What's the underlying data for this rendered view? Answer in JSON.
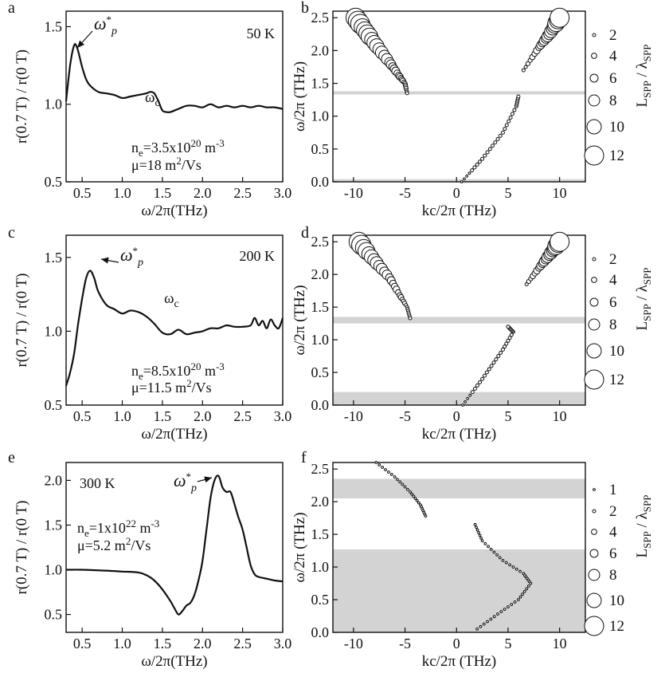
{
  "chart_data": [
    {
      "id": "a",
      "type": "line",
      "panel_label": "a",
      "temperature": "50 K",
      "xlabel": "ω/2π(THz)",
      "ylabel": "r(0.7 T) / r(0 T)",
      "xlim": [
        0.3,
        3.0
      ],
      "ylim": [
        0.5,
        1.6
      ],
      "xticks": [
        "0.5",
        "1.0",
        "1.5",
        "2.0",
        "2.5",
        "3.0"
      ],
      "yticks": [
        "0.5",
        "1.0",
        "1.5"
      ],
      "annotation_peak": "ω*p",
      "annotation_cyclotron": "ωc",
      "params": [
        "ne=3.5x10^20 m^-3",
        "μ=18 m²/Vs"
      ],
      "x": [
        0.3,
        0.35,
        0.4,
        0.44,
        0.5,
        0.55,
        0.6,
        0.7,
        0.8,
        0.9,
        1.0,
        1.1,
        1.2,
        1.3,
        1.35,
        1.4,
        1.45,
        1.5,
        1.55,
        1.6,
        1.7,
        1.8,
        1.9,
        2.0,
        2.1,
        2.2,
        2.3,
        2.4,
        2.5,
        2.6,
        2.7,
        2.8,
        2.9,
        3.0
      ],
      "y": [
        1.02,
        1.25,
        1.38,
        1.36,
        1.24,
        1.16,
        1.12,
        1.08,
        1.07,
        1.06,
        1.04,
        1.05,
        1.06,
        1.07,
        1.08,
        1.07,
        1.02,
        0.96,
        0.95,
        0.95,
        0.97,
        0.99,
        0.99,
        0.98,
        1.0,
        0.98,
        0.99,
        0.98,
        0.99,
        0.98,
        0.99,
        0.98,
        0.98,
        0.97
      ]
    },
    {
      "id": "b",
      "type": "scatter",
      "panel_label": "b",
      "xlabel": "kc/2π (THz)",
      "ylabel": "ω/2π (THz)",
      "xlim": [
        -12,
        12.5
      ],
      "ylim": [
        0,
        2.6
      ],
      "xticks": [
        "-10",
        "-5",
        "0",
        "5",
        "10"
      ],
      "yticks": [
        "0.0",
        "0.5",
        "1.0",
        "1.5",
        "2.0",
        "2.5"
      ],
      "bands": [
        [
          1.33,
          1.38
        ],
        [
          0.0,
          0.04
        ]
      ],
      "branches": [
        {
          "x": [
            -9.8,
            -8.0,
            -6.5,
            -5.6,
            -5.0,
            -4.8
          ],
          "y": [
            2.5,
            2.12,
            1.82,
            1.62,
            1.5,
            1.35
          ],
          "size": [
            12,
            10,
            7,
            5,
            3,
            2
          ]
        },
        {
          "x": [
            0.5,
            2.5,
            4.5,
            5.8,
            6.0
          ],
          "y": [
            0.0,
            0.35,
            0.75,
            1.15,
            1.3
          ],
          "size": [
            1,
            2,
            2,
            2,
            2
          ]
        },
        {
          "x": [
            6.5,
            8.0,
            9.0,
            10.0
          ],
          "y": [
            1.7,
            2.05,
            2.25,
            2.5
          ],
          "size": [
            2,
            5,
            8,
            12
          ]
        }
      ],
      "legend_title": "LSPP / λSPP",
      "legend": [
        "2",
        "4",
        "6",
        "8",
        "10",
        "12"
      ]
    },
    {
      "id": "c",
      "type": "line",
      "panel_label": "c",
      "temperature": "200 K",
      "xlabel": "ω/2π(THz)",
      "ylabel": "r(0.7 T) / r(0 T)",
      "xlim": [
        0.3,
        3.0
      ],
      "ylim": [
        0.5,
        1.65
      ],
      "xticks": [
        "0.5",
        "1.0",
        "1.5",
        "2.0",
        "2.5",
        "3.0"
      ],
      "yticks": [
        "0.5",
        "1.0",
        "1.5"
      ],
      "annotation_peak": "ω*p",
      "annotation_cyclotron": "ωc",
      "params": [
        "ne=8.5x10^20 m^-3",
        "μ=11.5 m²/Vs"
      ],
      "x": [
        0.3,
        0.35,
        0.4,
        0.45,
        0.5,
        0.55,
        0.6,
        0.65,
        0.7,
        0.8,
        0.9,
        1.0,
        1.1,
        1.2,
        1.3,
        1.4,
        1.5,
        1.6,
        1.7,
        1.8,
        1.9,
        2.0,
        2.1,
        2.2,
        2.3,
        2.4,
        2.5,
        2.6,
        2.65,
        2.7,
        2.75,
        2.8,
        2.85,
        2.9,
        2.95,
        3.0
      ],
      "y": [
        0.63,
        0.72,
        0.85,
        1.05,
        1.22,
        1.36,
        1.41,
        1.36,
        1.27,
        1.18,
        1.15,
        1.12,
        1.14,
        1.13,
        1.1,
        1.05,
        0.99,
        0.98,
        1.01,
        0.98,
        0.99,
        1.0,
        1.02,
        1.02,
        1.04,
        1.03,
        1.03,
        1.04,
        1.09,
        1.04,
        1.07,
        1.02,
        1.08,
        1.04,
        1.02,
        1.09
      ]
    },
    {
      "id": "d",
      "type": "scatter",
      "panel_label": "d",
      "xlabel": "kc/2π (THz)",
      "ylabel": "ω/2π (THz)",
      "xlim": [
        -12,
        12.5
      ],
      "ylim": [
        0,
        2.6
      ],
      "xticks": [
        "-10",
        "-5",
        "0",
        "5",
        "10"
      ],
      "yticks": [
        "0.0",
        "0.5",
        "1.0",
        "1.5",
        "2.0",
        "2.5"
      ],
      "bands": [
        [
          1.25,
          1.35
        ],
        [
          0.0,
          0.2
        ]
      ],
      "branches": [
        {
          "x": [
            -9.5,
            -8.0,
            -6.5,
            -5.5,
            -4.8,
            -4.5
          ],
          "y": [
            2.5,
            2.22,
            1.95,
            1.68,
            1.5,
            1.33
          ],
          "size": [
            12,
            9,
            6,
            4,
            2,
            2
          ]
        },
        {
          "x": [
            0.6,
            2.5,
            4.5,
            5.5,
            5.0
          ],
          "y": [
            0.0,
            0.4,
            0.85,
            1.12,
            1.2
          ],
          "size": [
            1,
            2,
            2,
            2,
            2
          ]
        },
        {
          "x": [
            6.8,
            8.0,
            9.0,
            10.0
          ],
          "y": [
            1.85,
            2.1,
            2.3,
            2.5
          ],
          "size": [
            2,
            5,
            8,
            12
          ]
        }
      ],
      "legend_title": "LSPP / λSPP",
      "legend": [
        "2",
        "4",
        "6",
        "8",
        "10",
        "12"
      ]
    },
    {
      "id": "e",
      "type": "line",
      "panel_label": "e",
      "temperature": "300 K",
      "xlabel": "ω/2π(THz)",
      "ylabel": "r(0.7 T) / r(0 T)",
      "xlim": [
        0.3,
        3.0
      ],
      "ylim": [
        0.3,
        2.2
      ],
      "xticks": [
        "0.5",
        "1.0",
        "1.5",
        "2.0",
        "2.5",
        "3.0"
      ],
      "yticks": [
        "0.5",
        "1.0",
        "1.5",
        "2.0"
      ],
      "annotation_peak": "ω*p",
      "params": [
        "ne=1x10^22 m^-3",
        "μ=5.2 m²/Vs"
      ],
      "x": [
        0.3,
        0.5,
        0.8,
        1.0,
        1.2,
        1.3,
        1.4,
        1.5,
        1.6,
        1.65,
        1.7,
        1.75,
        1.8,
        1.85,
        1.9,
        1.95,
        2.0,
        2.05,
        2.1,
        2.15,
        2.2,
        2.25,
        2.3,
        2.35,
        2.4,
        2.45,
        2.5,
        2.55,
        2.6,
        2.65,
        2.7,
        2.8,
        2.9,
        3.0
      ],
      "y": [
        1.0,
        1.0,
        0.99,
        0.98,
        0.97,
        0.94,
        0.88,
        0.78,
        0.65,
        0.57,
        0.5,
        0.54,
        0.6,
        0.63,
        0.72,
        0.88,
        1.1,
        1.45,
        1.8,
        2.0,
        2.05,
        1.92,
        1.87,
        1.87,
        1.73,
        1.58,
        1.45,
        1.25,
        1.05,
        0.95,
        0.92,
        0.9,
        0.88,
        0.87
      ]
    },
    {
      "id": "f",
      "type": "scatter",
      "panel_label": "f",
      "xlabel": "kc/2π (THz)",
      "ylabel": "ω/2π (THz)",
      "xlim": [
        -12,
        12.5
      ],
      "ylim": [
        0,
        2.6
      ],
      "xticks": [
        "-10",
        "-5",
        "0",
        "5",
        "10"
      ],
      "yticks": [
        "0.0",
        "0.5",
        "1.0",
        "1.5",
        "2.0",
        "2.5"
      ],
      "bands": [
        [
          2.05,
          2.35
        ],
        [
          0.0,
          1.27
        ]
      ],
      "branches": [
        {
          "x": [
            -7.8,
            -6.0,
            -4.5,
            -3.5,
            -3.0
          ],
          "y": [
            2.6,
            2.38,
            2.15,
            1.95,
            1.78
          ],
          "size": [
            1,
            1,
            1,
            1,
            1
          ]
        },
        {
          "x": [
            1.8,
            2.5,
            4.5,
            6.5,
            7.2,
            6.0,
            4.0,
            2.0
          ],
          "y": [
            1.65,
            1.4,
            1.1,
            0.9,
            0.75,
            0.5,
            0.28,
            0.05
          ],
          "size": [
            1,
            1,
            1,
            1,
            1,
            1,
            1,
            1
          ]
        }
      ],
      "legend_title": "LSPP / λSPP",
      "legend": [
        "1",
        "2",
        "4",
        "6",
        "8",
        "10",
        "12"
      ]
    }
  ]
}
